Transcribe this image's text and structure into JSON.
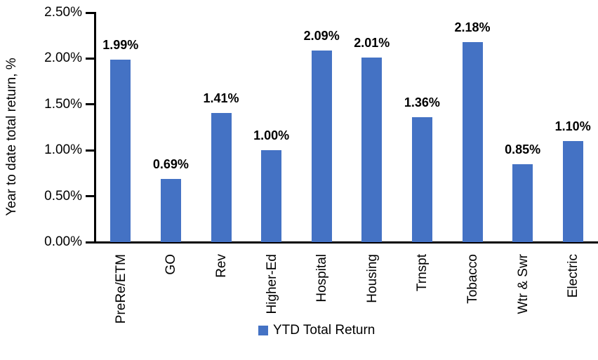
{
  "chart_data": {
    "type": "bar",
    "title": "",
    "xlabel": "",
    "ylabel": "Year to date total return, %",
    "categories": [
      "PreRe/ETM",
      "GO",
      "Rev",
      "Higher-Ed",
      "Hospital",
      "Housing",
      "Trnspt",
      "Tobacco",
      "Wtr & Swr",
      "Electric"
    ],
    "values": [
      1.99,
      0.69,
      1.41,
      1.0,
      2.09,
      2.01,
      1.36,
      2.18,
      0.85,
      1.1
    ],
    "value_labels": [
      "1.99%",
      "0.69%",
      "1.41%",
      "1.00%",
      "2.09%",
      "2.01%",
      "1.36%",
      "2.18%",
      "0.85%",
      "1.10%"
    ],
    "ylim": [
      0,
      2.5
    ],
    "yticks": [
      {
        "value": 0.0,
        "label": "0.00%"
      },
      {
        "value": 0.5,
        "label": "0.50%"
      },
      {
        "value": 1.0,
        "label": "1.00%"
      },
      {
        "value": 1.5,
        "label": "1.50%"
      },
      {
        "value": 2.0,
        "label": "2.00%"
      },
      {
        "value": 2.5,
        "label": "2.50%"
      }
    ],
    "grid": false,
    "bar_color": "#4472C4",
    "legend": {
      "position": "bottom",
      "entries": [
        {
          "label": "YTD Total Return",
          "color": "#4472C4"
        }
      ]
    }
  },
  "colors": {
    "bar": "#4472C4",
    "axis": "#000000",
    "text": "#000000",
    "background": "#FFFFFF"
  }
}
